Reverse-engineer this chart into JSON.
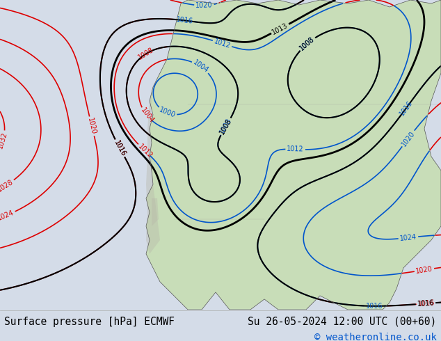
{
  "title_left": "Surface pressure [hPa] ECMWF",
  "title_right": "Su 26-05-2024 12:00 UTC (00+60)",
  "copyright": "© weatheronline.co.uk",
  "bg_color": "#d4dce8",
  "land_green": "#c8ddb8",
  "land_gray": "#c0c8b8",
  "ocean_color": "#d4dce8",
  "bottom_bar_color": "#ffffff",
  "text_color_black": "#000000",
  "text_color_blue": "#0055cc",
  "contour_red": "#dd0000",
  "contour_blue": "#0055cc",
  "contour_black": "#000000",
  "title_fontsize": 10.5,
  "copyright_fontsize": 10,
  "fig_width": 6.34,
  "fig_height": 4.9,
  "dpi": 100
}
